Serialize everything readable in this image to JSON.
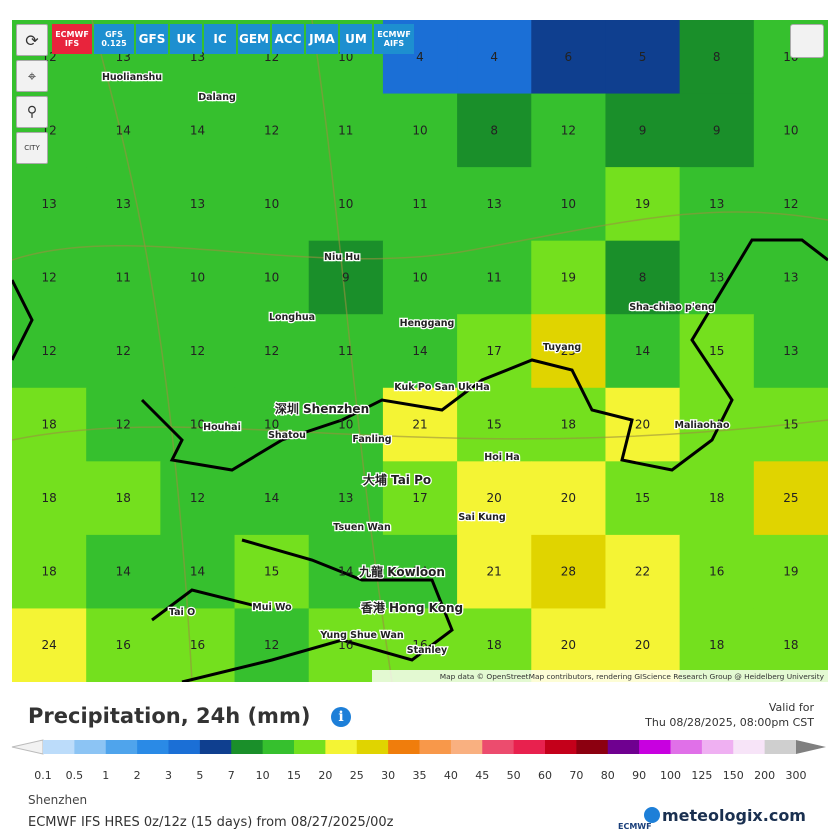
{
  "toolbar": {
    "models": [
      "ECMWF IFS",
      "GFS 0.125",
      "GFS",
      "UK",
      "IC",
      "GEM",
      "ACC",
      "JMA",
      "UM",
      "ECMWF AIFS"
    ],
    "active": 0,
    "city_button": "CITY"
  },
  "map": {
    "grid": [
      [
        12,
        13,
        13,
        12,
        10,
        4,
        4,
        6,
        5,
        8,
        10
      ],
      [
        12,
        14,
        14,
        12,
        11,
        10,
        8,
        12,
        9,
        9,
        10
      ],
      [
        13,
        13,
        13,
        10,
        10,
        11,
        13,
        10,
        19,
        13,
        12
      ],
      [
        12,
        11,
        10,
        10,
        9,
        10,
        11,
        19,
        8,
        13,
        13
      ],
      [
        12,
        12,
        12,
        12,
        11,
        14,
        17,
        25,
        14,
        15,
        13
      ],
      [
        18,
        12,
        10,
        10,
        10,
        21,
        15,
        18,
        20,
        15,
        15
      ],
      [
        18,
        18,
        12,
        14,
        13,
        17,
        20,
        20,
        15,
        18,
        25
      ],
      [
        18,
        14,
        14,
        15,
        14,
        14,
        21,
        28,
        22,
        16,
        19
      ],
      [
        24,
        16,
        16,
        12,
        16,
        16,
        18,
        20,
        20,
        18,
        18
      ]
    ],
    "places": [
      "Huolianshu",
      "Dalang",
      "Longhua",
      "Niu Hu",
      "Henggang",
      "Tuyang",
      "Sha-chiao p'eng",
      "深圳 Shenzhen",
      "Houhai",
      "Shatou",
      "Fanling",
      "Kuk Po San Uk Ha",
      "Hoi Ha",
      "大埔 Tai Po",
      "Sai Kung",
      "Tsuen Wan",
      "九龍 Kowloon",
      "香港 Hong Kong",
      "Mui Wo",
      "Tai O",
      "Yung Shue Wan",
      "Stanley",
      "Maliaohao"
    ],
    "attribution": "Map data © OpenStreetMap contributors, rendering GIScience Research Group @ Heidelberg University"
  },
  "header": {
    "title": "Precipitation, 24h (mm)",
    "valid_label": "Valid for",
    "valid_time": "Thu 08/28/2025, 08:00pm CST"
  },
  "legend": {
    "values": [
      0.1,
      0.5,
      1,
      2,
      3,
      5,
      7,
      10,
      15,
      20,
      25,
      30,
      35,
      40,
      45,
      50,
      60,
      70,
      80,
      90,
      100,
      125,
      150,
      200,
      300
    ],
    "colors": [
      "#bcdcfa",
      "#8cc4f4",
      "#4fa4ec",
      "#2a8ae6",
      "#1b6fd6",
      "#0f3f8f",
      "#1a8f2a",
      "#36c02e",
      "#74e01e",
      "#f4f434",
      "#e0d400",
      "#f07d0c",
      "#f8984a",
      "#f9b080",
      "#ec4c6e",
      "#e8214e",
      "#c4001a",
      "#8c0010",
      "#6f0090",
      "#c800e0",
      "#e070e8",
      "#efb0f2",
      "#f7e4f8",
      "#cfcfcf"
    ]
  },
  "footer": {
    "location": "Shenzhen",
    "model_run": "ECMWF IFS HRES 0z/12z (15 days) from 08/27/2025/00z",
    "ecmwf": "ECMWF",
    "brand": "meteologix.com"
  }
}
